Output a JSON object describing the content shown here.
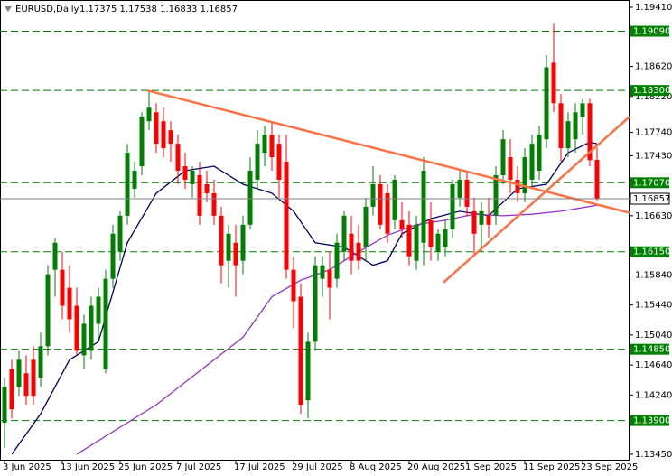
{
  "chart_data": {
    "type": "candlestick",
    "title": "EURUSD,Daily",
    "ohlc_label": "1.17375 1.17538 1.16833 1.16857",
    "up_color": "#008000",
    "down_color": "#ff0000",
    "ylim": [
      1.13365,
      1.19506
    ],
    "yticks": [
      {
        "value": 1.1941,
        "label": "1.19410"
      },
      {
        "value": 1.1862,
        "label": "1.18620"
      },
      {
        "value": 1.1822,
        "label": "1.18220"
      },
      {
        "value": 1.1774,
        "label": "1.17740"
      },
      {
        "value": 1.1743,
        "label": "1.17430"
      },
      {
        "value": 1.1663,
        "label": "1.16630"
      },
      {
        "value": 1.1584,
        "label": "1.15840"
      },
      {
        "value": 1.1544,
        "label": "1.15440"
      },
      {
        "value": 1.1504,
        "label": "1.15040"
      },
      {
        "value": 1.1464,
        "label": "1.14640"
      },
      {
        "value": 1.1424,
        "label": "1.14240"
      },
      {
        "value": 1.1345,
        "label": "1.13450"
      }
    ],
    "categories": [
      "3 Jun 2025",
      null,
      null,
      null,
      null,
      null,
      null,
      null,
      "13 Jun 2025",
      null,
      null,
      null,
      null,
      null,
      null,
      null,
      "25 Jun 2025",
      null,
      null,
      null,
      null,
      null,
      null,
      null,
      "7 Jul 2025",
      null,
      null,
      null,
      null,
      null,
      null,
      null,
      "17 Jul 2025",
      null,
      null,
      null,
      null,
      null,
      null,
      null,
      "29 Jul 2025",
      null,
      null,
      null,
      null,
      null,
      null,
      null,
      "8 Aug 2025",
      null,
      null,
      null,
      null,
      null,
      null,
      null,
      "20 Aug 2025",
      null,
      null,
      null,
      null,
      null,
      null,
      null,
      "1 Sep 2025",
      null,
      null,
      null,
      null,
      null,
      null,
      null,
      "11 Sep 2025",
      null,
      null,
      null,
      null,
      null,
      null,
      null,
      "23 Sep 2025",
      null,
      null
    ],
    "open": [
      1.1387,
      1.1459,
      1.1435,
      1.1453,
      1.1471,
      1.1447,
      1.1489,
      1.1591,
      1.1591,
      1.1567,
      1.1543,
      1.1477,
      1.1483,
      1.1519,
      1.1459,
      1.1579,
      1.1615,
      1.1663,
      1.1699,
      1.1729,
      1.1789,
      1.1801,
      1.1789,
      1.1777,
      1.1759,
      1.1729,
      1.1705,
      1.1717,
      1.1705,
      1.1693,
      1.1663,
      1.1603,
      1.1627,
      1.1603,
      1.1651,
      1.1711,
      1.1747,
      1.1771,
      1.1759,
      1.1735,
      1.1591,
      1.1555,
      1.1417,
      1.1495,
      1.1579,
      1.1591,
      1.1579,
      1.1615,
      1.1639,
      1.1627,
      1.1621,
      1.1675,
      1.1705,
      1.1693,
      1.1657,
      1.1657,
      1.1651,
      1.1603,
      1.1627,
      1.1657,
      1.1615,
      1.1621,
      1.1645,
      1.1687,
      1.1711,
      1.1669,
      1.1651,
      1.1663,
      1.1663,
      1.1717,
      1.1741,
      1.1711,
      1.1693,
      1.1711,
      1.1723,
      1.1765,
      1.1867,
      1.1813,
      1.1753,
      1.1765,
      1.1795,
      1.1813,
      1.17375
    ],
    "high": [
      1.1447,
      1.1471,
      1.1483,
      1.1477,
      1.1489,
      1.1507,
      1.1597,
      1.1633,
      1.1615,
      1.1597,
      1.1567,
      1.1531,
      1.1555,
      1.1567,
      1.1591,
      1.1651,
      1.1669,
      1.1759,
      1.1735,
      1.1801,
      1.1831,
      1.1813,
      1.1807,
      1.1789,
      1.1771,
      1.1747,
      1.1729,
      1.1735,
      1.1723,
      1.1711,
      1.1675,
      1.1651,
      1.1651,
      1.1663,
      1.1741,
      1.1777,
      1.1783,
      1.1789,
      1.1771,
      1.1771,
      1.1609,
      1.1573,
      1.1507,
      1.1609,
      1.1609,
      1.1615,
      1.1639,
      1.1669,
      1.1663,
      1.1651,
      1.1687,
      1.1729,
      1.1717,
      1.1705,
      1.1717,
      1.1681,
      1.1669,
      1.1663,
      1.1741,
      1.1681,
      1.1645,
      1.1657,
      1.1711,
      1.1723,
      1.1723,
      1.1687,
      1.1681,
      1.1687,
      1.1729,
      1.1777,
      1.1765,
      1.1729,
      1.1753,
      1.1771,
      1.1783,
      1.1877,
      1.1919,
      1.1825,
      1.1801,
      1.1813,
      1.1819,
      1.1819,
      1.17538
    ],
    "low": [
      1.1353,
      1.1393,
      1.1423,
      1.1411,
      1.1411,
      1.1435,
      1.1477,
      1.1555,
      1.1525,
      1.1507,
      1.1477,
      1.1459,
      1.1471,
      1.1495,
      1.1453,
      1.1567,
      1.1603,
      1.1651,
      1.1687,
      1.1717,
      1.1777,
      1.1747,
      1.1741,
      1.1735,
      1.1705,
      1.1699,
      1.1687,
      1.1651,
      1.1681,
      1.1651,
      1.1573,
      1.1567,
      1.1555,
      1.1585,
      1.1645,
      1.1699,
      1.1729,
      1.1723,
      1.1687,
      1.1579,
      1.1513,
      1.1399,
      1.1393,
      1.1483,
      1.1555,
      1.1525,
      1.1567,
      1.1603,
      1.1585,
      1.1591,
      1.1603,
      1.1663,
      1.1645,
      1.1627,
      1.1645,
      1.1633,
      1.1597,
      1.1591,
      1.1597,
      1.1603,
      1.1603,
      1.1609,
      1.1633,
      1.1675,
      1.1663,
      1.1609,
      1.1615,
      1.1633,
      1.1651,
      1.1705,
      1.1693,
      1.1681,
      1.1681,
      1.1699,
      1.1711,
      1.1753,
      1.1801,
      1.1735,
      1.1741,
      1.1747,
      1.1771,
      1.1729,
      1.16833
    ],
    "close": [
      1.1435,
      1.1405,
      1.1471,
      1.1423,
      1.1423,
      1.1489,
      1.1585,
      1.1627,
      1.1543,
      1.1525,
      1.1483,
      1.1519,
      1.1543,
      1.1555,
      1.1579,
      1.1639,
      1.1663,
      1.1747,
      1.1723,
      1.1795,
      1.1807,
      1.1759,
      1.1753,
      1.1759,
      1.1723,
      1.1711,
      1.1723,
      1.1663,
      1.1693,
      1.1663,
      1.1597,
      1.1639,
      1.1597,
      1.1651,
      1.1723,
      1.1759,
      1.1771,
      1.1741,
      1.1711,
      1.1591,
      1.1549,
      1.1411,
      1.1495,
      1.1597,
      1.1597,
      1.1567,
      1.1627,
      1.1663,
      1.1603,
      1.1603,
      1.1675,
      1.1705,
      1.1651,
      1.1639,
      1.1711,
      1.1645,
      1.1609,
      1.1651,
      1.1723,
      1.1621,
      1.1639,
      1.1645,
      1.1705,
      1.1711,
      1.1675,
      1.1639,
      1.1669,
      1.1651,
      1.1717,
      1.1765,
      1.1711,
      1.1693,
      1.1741,
      1.1759,
      1.1771,
      1.1861,
      1.1813,
      1.1753,
      1.1789,
      1.1801,
      1.1813,
      1.1737,
      1.16857
    ],
    "moving_averages": [
      {
        "color": "#000066",
        "points": [
          [
            1,
            1.1345
          ],
          [
            5,
            1.1399
          ],
          [
            9,
            1.1471
          ],
          [
            13,
            1.1495
          ],
          [
            17,
            1.1627
          ],
          [
            21,
            1.1693
          ],
          [
            25,
            1.1723
          ],
          [
            29,
            1.1729
          ],
          [
            33,
            1.1705
          ],
          [
            37,
            1.1693
          ],
          [
            40,
            1.1669
          ],
          [
            43,
            1.1627
          ],
          [
            47,
            1.1621
          ],
          [
            51,
            1.1597
          ],
          [
            53,
            1.1603
          ],
          [
            55,
            1.1639
          ],
          [
            59,
            1.1659
          ],
          [
            63,
            1.1669
          ],
          [
            67,
            1.1663
          ],
          [
            71,
            1.1699
          ],
          [
            75,
            1.1705
          ],
          [
            78,
            1.1747
          ],
          [
            81,
            1.1761
          ],
          [
            82,
            1.1759
          ]
        ]
      },
      {
        "color": "#9933cc",
        "points": [
          [
            10,
            1.1345
          ],
          [
            17,
            1.1387
          ],
          [
            21,
            1.1411
          ],
          [
            25,
            1.1441
          ],
          [
            29,
            1.1471
          ],
          [
            33,
            1.1501
          ],
          [
            37,
            1.1555
          ],
          [
            41,
            1.1577
          ],
          [
            45,
            1.1591
          ],
          [
            49,
            1.1615
          ],
          [
            53,
            1.1637
          ],
          [
            57,
            1.1651
          ],
          [
            61,
            1.1657
          ],
          [
            65,
            1.1665
          ],
          [
            69,
            1.1663
          ],
          [
            73,
            1.1665
          ],
          [
            77,
            1.1669
          ],
          [
            82,
            1.1677
          ]
        ]
      }
    ],
    "trendlines": [
      {
        "color": "#ff7043",
        "points": [
          [
            19.75,
            1.183
          ],
          [
            86.5,
            1.1667
          ]
        ]
      },
      {
        "color": "#ff7043",
        "points": [
          [
            60.75,
            1.1574
          ],
          [
            86.5,
            1.1795
          ]
        ]
      }
    ],
    "level_color": "#008000",
    "levels": [
      {
        "value": 1.1909,
        "label": "1.19090"
      },
      {
        "value": 1.183,
        "label": "1.18300"
      },
      {
        "value": 1.1707,
        "label": "1.17070"
      },
      {
        "value": 1.1615,
        "label": "1.16150"
      },
      {
        "value": 1.1485,
        "label": "1.14850"
      },
      {
        "value": 1.139,
        "label": "1.13900"
      }
    ],
    "last_price": {
      "value": 1.16857,
      "label": "1.16857"
    }
  }
}
